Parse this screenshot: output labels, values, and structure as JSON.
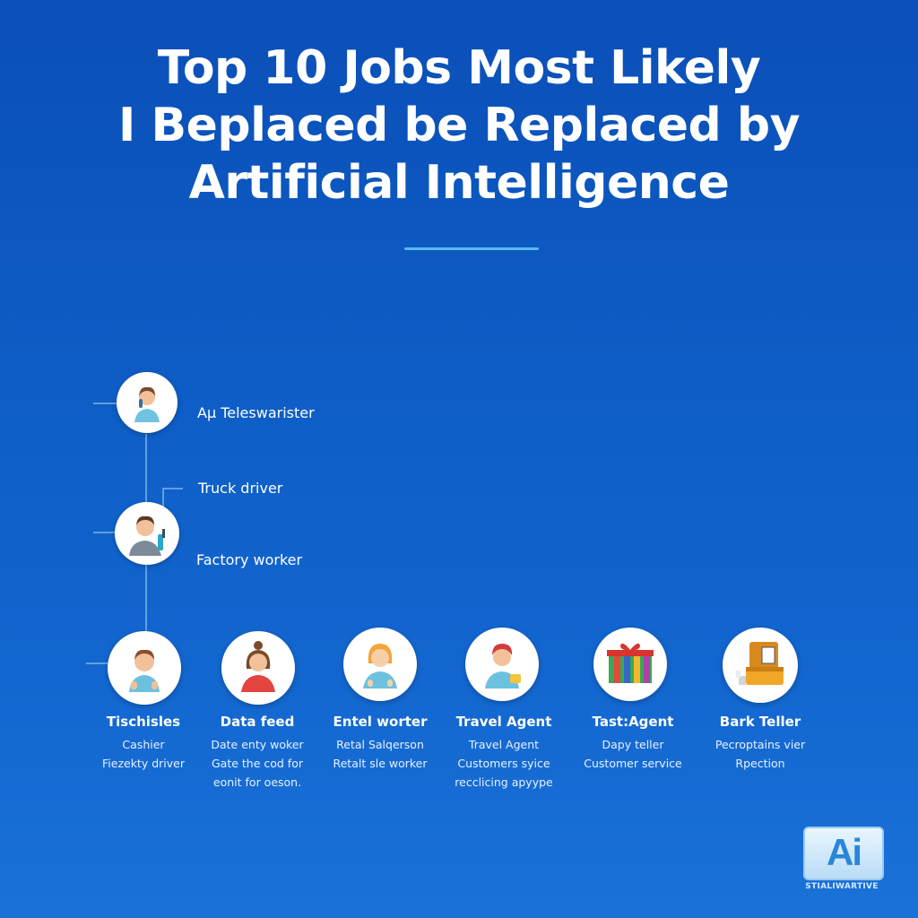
{
  "title": {
    "line1": "Top 10 Jobs Most Likely",
    "line2": "I Beplaced be Replaced by",
    "line3": "Artificial Intelligence"
  },
  "side_items": [
    {
      "label": "Aµ Teleswarister",
      "icon": "person-phone-icon"
    },
    {
      "label": "Truck driver",
      "icon": ""
    },
    {
      "label": "Factory worker",
      "icon": "person-tool-icon"
    }
  ],
  "columns": [
    {
      "title": "Tischisles",
      "lines": [
        "Cashier",
        "Fiezekty driver"
      ],
      "icon": "boy-icon"
    },
    {
      "title": "Data feed",
      "lines": [
        "Date enty woker",
        "Gate the cod for",
        "eonit for oeson."
      ],
      "icon": "woman-icon"
    },
    {
      "title": "Entel worter",
      "lines": [
        "Retal Salqerson",
        "Retalt sle worker"
      ],
      "icon": "blond-person-icon"
    },
    {
      "title": "Travel Agent",
      "lines": [
        "Travel Agent",
        "Customers syice",
        "recclicing apyype"
      ],
      "icon": "red-hair-person-icon"
    },
    {
      "title": "Tast:Agent",
      "lines": [
        "Dapy teller",
        "Customer service"
      ],
      "icon": "gift-box-icon"
    },
    {
      "title": "Bark Teller",
      "lines": [
        "Pecroptains vier",
        "Rpection"
      ],
      "icon": "cash-box-icon"
    }
  ],
  "logo": {
    "mark": "Ai",
    "caption": "STIALIWARTIVE"
  },
  "colors": {
    "background_top": "#0b4fb8",
    "background_bottom": "#1a72d8",
    "divider": "#56b8f2",
    "connector": "#7fb3e6",
    "text": "#ffffff"
  }
}
